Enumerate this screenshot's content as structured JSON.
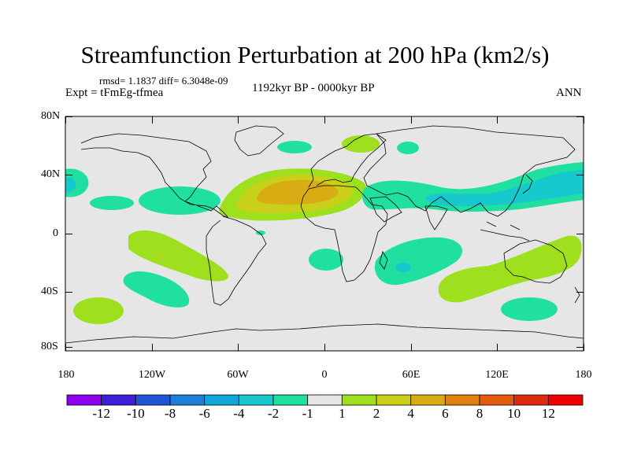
{
  "title": "Streamfunction Perturbation at 200 hPa (km2/s)",
  "stats_line": "rmsd= 1.1837  diff= 6.3048e-09",
  "experiment": "Expt = tFmEg-tfmea",
  "period": "1192kyr BP - 0000kyr BP",
  "season": "ANN",
  "y_ticks": [
    "80N",
    "40N",
    "0",
    "40S",
    "80S"
  ],
  "x_ticks": [
    "180",
    "120W",
    "60W",
    "0",
    "60E",
    "120E",
    "180"
  ],
  "colorbar": {
    "labels": [
      "-12",
      "-10",
      "-8",
      "-6",
      "-4",
      "-2",
      "-1",
      "1",
      "2",
      "4",
      "6",
      "8",
      "10",
      "12"
    ],
    "colors": [
      "#8f00ef",
      "#3d1fd8",
      "#1f55d6",
      "#1e7fdb",
      "#0fa6d9",
      "#17c9cc",
      "#1fe0a0",
      "#e6e6e6",
      "#9ee01e",
      "#c8d019",
      "#d9ac14",
      "#e0810f",
      "#e65a0c",
      "#e02a10",
      "#f00000"
    ]
  },
  "colors": {
    "background": "#e6e6e6",
    "coast": "#000000"
  }
}
